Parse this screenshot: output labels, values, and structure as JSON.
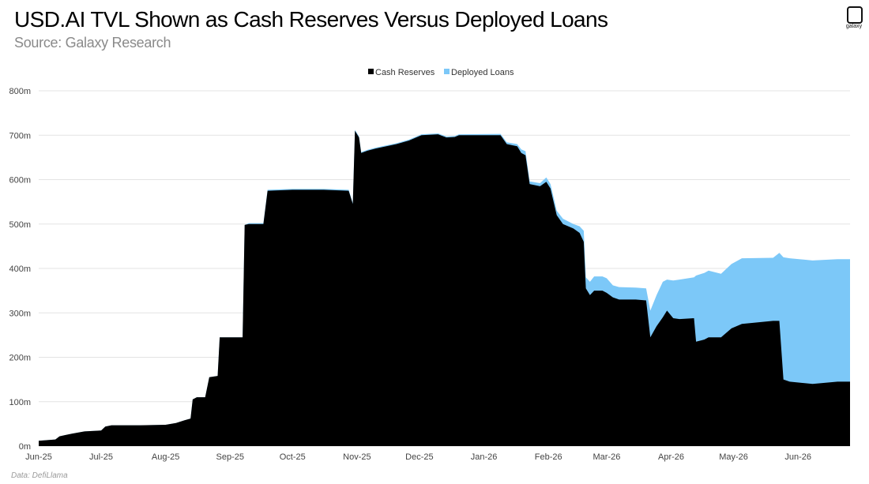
{
  "chart_data": {
    "type": "area",
    "stacked": true,
    "title": "USD.AI TVL Shown as Cash Reserves Versus Deployed Loans",
    "subtitle": "Source: Galaxy Research",
    "source_note": "Data: DefiLlama",
    "ylim": [
      0,
      800
    ],
    "y_ticks": [
      0,
      100,
      200,
      300,
      400,
      500,
      600,
      700,
      800
    ],
    "y_tick_labels": [
      "0m",
      "100m",
      "200m",
      "300m",
      "400m",
      "500m",
      "600m",
      "700m",
      "800m"
    ],
    "x_range": [
      "2025-06-01",
      "2026-06-26"
    ],
    "x_ticks": [
      "2025-06-01",
      "2025-07-01",
      "2025-08-01",
      "2025-09-01",
      "2025-10-01",
      "2025-11-01",
      "2025-12-01",
      "2026-01-01",
      "2026-02-01",
      "2026-03-01",
      "2026-04-01",
      "2026-05-01",
      "2026-06-01"
    ],
    "x_tick_labels": [
      "Jun-25",
      "Jul-25",
      "Aug-25",
      "Sep-25",
      "Oct-25",
      "Nov-25",
      "Dec-25",
      "Jan-26",
      "Feb-26",
      "Mar-26",
      "Apr-26",
      "May-26",
      "Jun-26"
    ],
    "grid": "horizontal",
    "legend_position": "top-center",
    "series": [
      {
        "name": "Cash Reserves",
        "color": "#000000",
        "points": [
          [
            "2025-06-01",
            12
          ],
          [
            "2025-06-09",
            15
          ],
          [
            "2025-06-11",
            22
          ],
          [
            "2025-06-14",
            25
          ],
          [
            "2025-06-17",
            28
          ],
          [
            "2025-06-23",
            33
          ],
          [
            "2025-07-01",
            35
          ],
          [
            "2025-07-03",
            44
          ],
          [
            "2025-07-06",
            47
          ],
          [
            "2025-07-20",
            47
          ],
          [
            "2025-08-01",
            48
          ],
          [
            "2025-08-06",
            52
          ],
          [
            "2025-08-10",
            58
          ],
          [
            "2025-08-13",
            62
          ],
          [
            "2025-08-14",
            105
          ],
          [
            "2025-08-16",
            110
          ],
          [
            "2025-08-20",
            110
          ],
          [
            "2025-08-22",
            155
          ],
          [
            "2025-08-26",
            158
          ],
          [
            "2025-08-27",
            245
          ],
          [
            "2025-09-07",
            245
          ],
          [
            "2025-09-08",
            498
          ],
          [
            "2025-09-10",
            500
          ],
          [
            "2025-09-17",
            500
          ],
          [
            "2025-09-19",
            575
          ],
          [
            "2025-10-01",
            577
          ],
          [
            "2025-10-16",
            577
          ],
          [
            "2025-10-28",
            575
          ],
          [
            "2025-10-30",
            545
          ],
          [
            "2025-10-31",
            710
          ],
          [
            "2025-11-02",
            695
          ],
          [
            "2025-11-03",
            660
          ],
          [
            "2025-11-06",
            665
          ],
          [
            "2025-11-10",
            670
          ],
          [
            "2025-11-20",
            680
          ],
          [
            "2025-11-26",
            688
          ],
          [
            "2025-12-02",
            700
          ],
          [
            "2025-12-10",
            702
          ],
          [
            "2025-12-14",
            695
          ],
          [
            "2025-12-18",
            696
          ],
          [
            "2025-12-20",
            700
          ],
          [
            "2026-01-09",
            700
          ],
          [
            "2026-01-12",
            680
          ],
          [
            "2026-01-17",
            675
          ],
          [
            "2026-01-19",
            660
          ],
          [
            "2026-01-21",
            655
          ],
          [
            "2026-01-23",
            590
          ],
          [
            "2026-01-28",
            585
          ],
          [
            "2026-01-31",
            595
          ],
          [
            "2026-02-02",
            580
          ],
          [
            "2026-02-05",
            520
          ],
          [
            "2026-02-08",
            500
          ],
          [
            "2026-02-13",
            490
          ],
          [
            "2026-02-16",
            480
          ],
          [
            "2026-02-18",
            460
          ],
          [
            "2026-02-19",
            355
          ],
          [
            "2026-02-21",
            340
          ],
          [
            "2026-02-23",
            350
          ],
          [
            "2026-02-27",
            350
          ],
          [
            "2026-03-01",
            345
          ],
          [
            "2026-03-04",
            335
          ],
          [
            "2026-03-07",
            330
          ],
          [
            "2026-03-15",
            330
          ],
          [
            "2026-03-20",
            328
          ],
          [
            "2026-03-22",
            245
          ],
          [
            "2026-03-25",
            270
          ],
          [
            "2026-03-28",
            290
          ],
          [
            "2026-03-30",
            305
          ],
          [
            "2026-04-02",
            288
          ],
          [
            "2026-04-05",
            286
          ],
          [
            "2026-04-12",
            288
          ],
          [
            "2026-04-13",
            235
          ],
          [
            "2026-04-17",
            240
          ],
          [
            "2026-04-19",
            245
          ],
          [
            "2026-04-25",
            245
          ],
          [
            "2026-04-30",
            265
          ],
          [
            "2026-05-05",
            275
          ],
          [
            "2026-05-20",
            282
          ],
          [
            "2026-05-23",
            282
          ],
          [
            "2026-05-25",
            150
          ],
          [
            "2026-05-28",
            145
          ],
          [
            "2026-06-08",
            140
          ],
          [
            "2026-06-20",
            145
          ],
          [
            "2026-06-26",
            145
          ]
        ]
      },
      {
        "name": "Deployed Loans",
        "color": "#7cc8f8",
        "total_points": [
          [
            "2025-06-01",
            12
          ],
          [
            "2025-06-09",
            15
          ],
          [
            "2025-06-11",
            22
          ],
          [
            "2025-06-14",
            25
          ],
          [
            "2025-06-17",
            28
          ],
          [
            "2025-06-23",
            33
          ],
          [
            "2025-07-01",
            35
          ],
          [
            "2025-07-03",
            44
          ],
          [
            "2025-07-06",
            47
          ],
          [
            "2025-07-20",
            47
          ],
          [
            "2025-08-01",
            48
          ],
          [
            "2025-08-06",
            52
          ],
          [
            "2025-08-10",
            58
          ],
          [
            "2025-08-13",
            62
          ],
          [
            "2025-08-14",
            105
          ],
          [
            "2025-08-16",
            110
          ],
          [
            "2025-08-20",
            110
          ],
          [
            "2025-08-22",
            155
          ],
          [
            "2025-08-26",
            158
          ],
          [
            "2025-08-27",
            245
          ],
          [
            "2025-09-07",
            245
          ],
          [
            "2025-09-08",
            498
          ],
          [
            "2025-09-10",
            502
          ],
          [
            "2025-09-17",
            502
          ],
          [
            "2025-09-19",
            577
          ],
          [
            "2025-10-01",
            579
          ],
          [
            "2025-10-16",
            579
          ],
          [
            "2025-10-28",
            577
          ],
          [
            "2025-10-30",
            547
          ],
          [
            "2025-10-31",
            712
          ],
          [
            "2025-11-02",
            697
          ],
          [
            "2025-11-03",
            662
          ],
          [
            "2025-11-06",
            667
          ],
          [
            "2025-11-10",
            672
          ],
          [
            "2025-11-20",
            682
          ],
          [
            "2025-11-26",
            690
          ],
          [
            "2025-12-02",
            702
          ],
          [
            "2025-12-10",
            704
          ],
          [
            "2025-12-14",
            697
          ],
          [
            "2025-12-18",
            698
          ],
          [
            "2025-12-20",
            702
          ],
          [
            "2026-01-09",
            703
          ],
          [
            "2026-01-12",
            684
          ],
          [
            "2026-01-17",
            680
          ],
          [
            "2026-01-19",
            668
          ],
          [
            "2026-01-21",
            664
          ],
          [
            "2026-01-23",
            596
          ],
          [
            "2026-01-28",
            592
          ],
          [
            "2026-01-31",
            605
          ],
          [
            "2026-02-02",
            590
          ],
          [
            "2026-02-05",
            530
          ],
          [
            "2026-02-08",
            512
          ],
          [
            "2026-02-13",
            500
          ],
          [
            "2026-02-16",
            495
          ],
          [
            "2026-02-18",
            485
          ],
          [
            "2026-02-19",
            380
          ],
          [
            "2026-02-21",
            370
          ],
          [
            "2026-02-23",
            382
          ],
          [
            "2026-02-27",
            382
          ],
          [
            "2026-03-01",
            378
          ],
          [
            "2026-03-04",
            362
          ],
          [
            "2026-03-07",
            358
          ],
          [
            "2026-03-15",
            357
          ],
          [
            "2026-03-20",
            355
          ],
          [
            "2026-03-22",
            305
          ],
          [
            "2026-03-25",
            340
          ],
          [
            "2026-03-28",
            370
          ],
          [
            "2026-03-30",
            375
          ],
          [
            "2026-04-02",
            373
          ],
          [
            "2026-04-05",
            375
          ],
          [
            "2026-04-12",
            380
          ],
          [
            "2026-04-13",
            384
          ],
          [
            "2026-04-17",
            390
          ],
          [
            "2026-04-19",
            395
          ],
          [
            "2026-04-25",
            388
          ],
          [
            "2026-04-30",
            410
          ],
          [
            "2026-05-05",
            423
          ],
          [
            "2026-05-20",
            424
          ],
          [
            "2026-05-23",
            435
          ],
          [
            "2026-05-25",
            425
          ],
          [
            "2026-05-28",
            423
          ],
          [
            "2026-06-08",
            418
          ],
          [
            "2026-06-20",
            421
          ],
          [
            "2026-06-26",
            421
          ]
        ]
      }
    ]
  },
  "logo": {
    "text": "galaxy"
  }
}
